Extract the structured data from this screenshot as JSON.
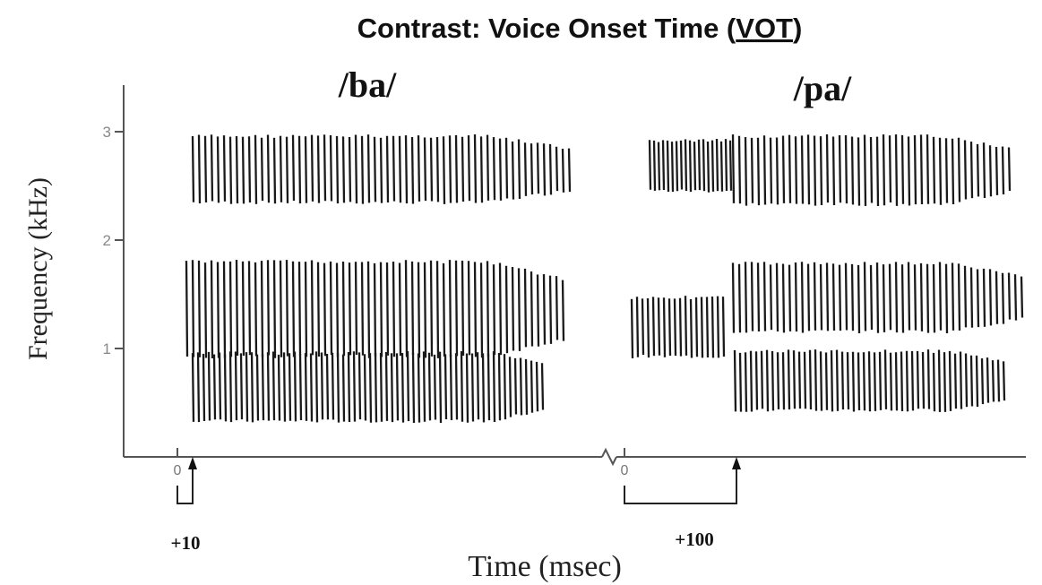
{
  "title": {
    "text": "Contrast: Voice Onset Time (",
    "abbr": "VOT",
    "end": ")"
  },
  "yaxis": {
    "label": "Frequency (kHz)",
    "ticks": [
      "3",
      "2",
      "1"
    ]
  },
  "xaxis": {
    "label": "Time (msec)"
  },
  "syllables": [
    {
      "label": "/ba/",
      "onset": "0",
      "vot": "+10"
    },
    {
      "label": "/pa/",
      "onset": "0",
      "vot": "+100"
    }
  ]
}
